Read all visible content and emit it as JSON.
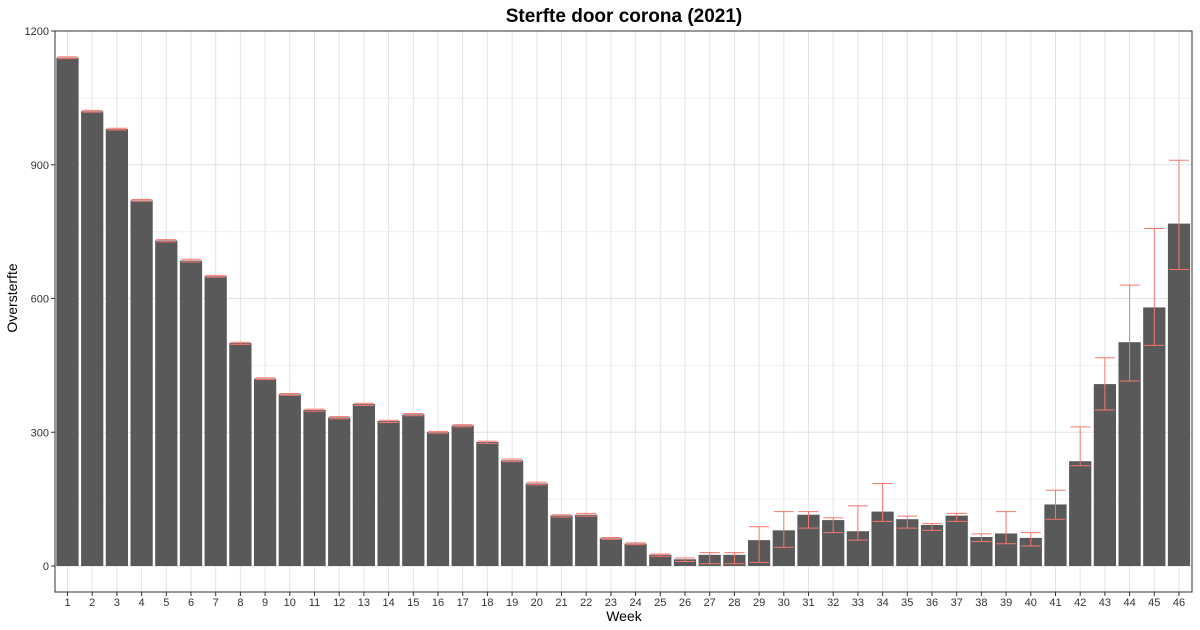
{
  "chart_data": {
    "type": "bar",
    "title": "Sterfte door corona (2021)",
    "xlabel": "Week",
    "ylabel": "Oversterfte",
    "ylim": [
      0,
      1200
    ],
    "yticks": [
      0,
      300,
      600,
      900,
      1200
    ],
    "grid": true,
    "bar_color": "#595959",
    "error_color": "#f8766d",
    "categories": [
      "1",
      "2",
      "3",
      "4",
      "5",
      "6",
      "7",
      "8",
      "9",
      "10",
      "11",
      "12",
      "13",
      "14",
      "15",
      "16",
      "17",
      "18",
      "19",
      "20",
      "21",
      "22",
      "23",
      "24",
      "25",
      "26",
      "27",
      "28",
      "29",
      "30",
      "31",
      "32",
      "33",
      "34",
      "35",
      "36",
      "37",
      "38",
      "39",
      "40",
      "41",
      "42",
      "43",
      "44",
      "45",
      "46"
    ],
    "values": [
      1140,
      1020,
      980,
      820,
      730,
      685,
      650,
      500,
      420,
      385,
      350,
      333,
      363,
      325,
      340,
      300,
      315,
      278,
      237,
      185,
      113,
      115,
      62,
      50,
      25,
      15,
      25,
      25,
      58,
      80,
      115,
      103,
      78,
      122,
      105,
      92,
      113,
      65,
      73,
      63,
      138,
      235,
      408,
      502,
      580,
      768
    ],
    "error_low": [
      1138,
      1018,
      978,
      818,
      727,
      682,
      648,
      497,
      418,
      383,
      347,
      330,
      360,
      322,
      337,
      298,
      312,
      275,
      234,
      182,
      110,
      112,
      60,
      48,
      22,
      10,
      5,
      5,
      8,
      42,
      85,
      75,
      58,
      100,
      85,
      80,
      100,
      55,
      50,
      45,
      105,
      225,
      350,
      415,
      495,
      665
    ],
    "error_high": [
      1142,
      1022,
      982,
      822,
      732,
      688,
      652,
      502,
      422,
      387,
      352,
      335,
      365,
      327,
      342,
      302,
      317,
      280,
      240,
      188,
      115,
      118,
      64,
      52,
      27,
      18,
      30,
      30,
      88,
      122,
      122,
      108,
      135,
      185,
      112,
      95,
      118,
      72,
      122,
      75,
      170,
      312,
      467,
      630,
      757,
      910
    ]
  }
}
